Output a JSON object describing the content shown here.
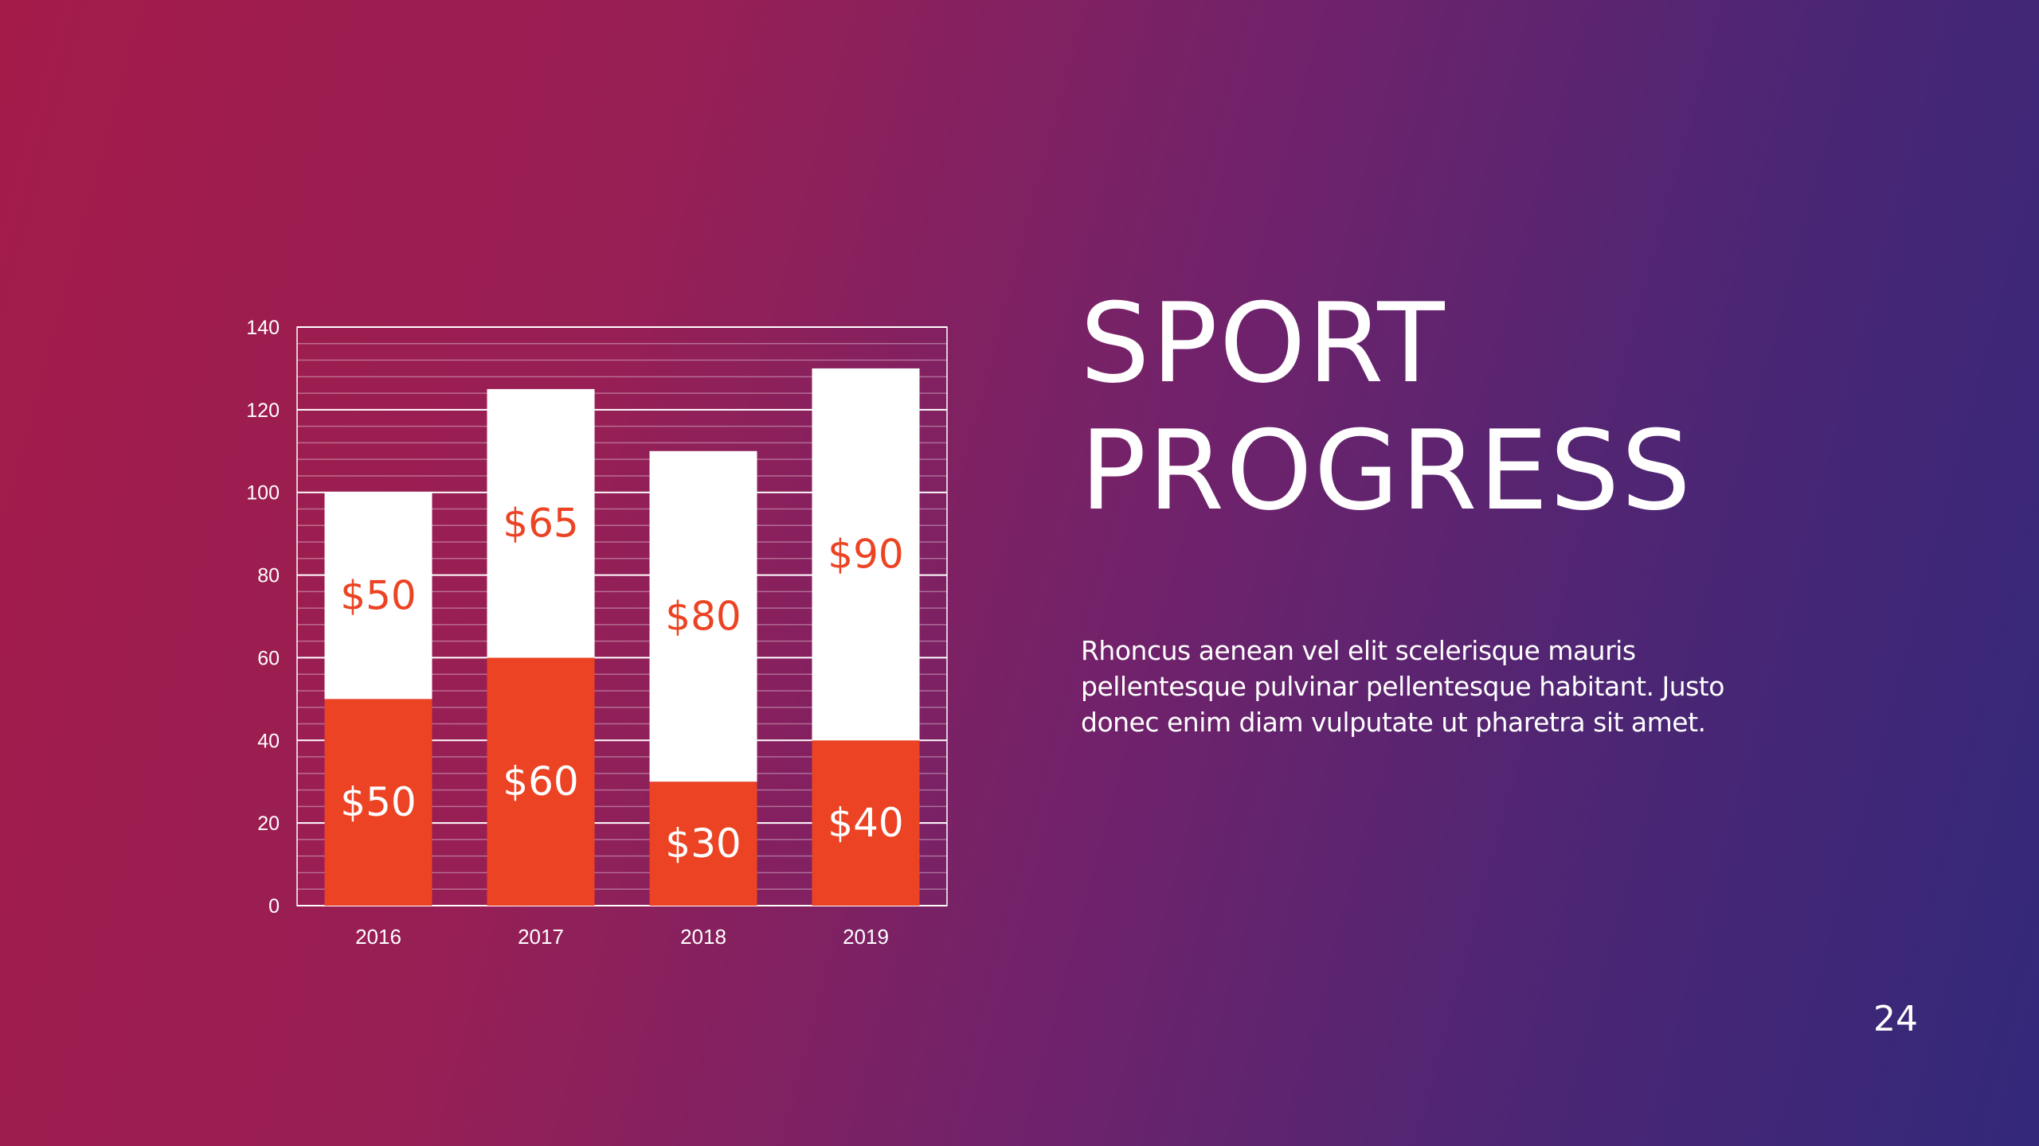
{
  "slide": {
    "title_line1": "SPORT",
    "title_line2": "PROGRESS",
    "body": "Rhoncus aenean vel elit scelerisque mauris pellentesque pulvinar pellentesque habitant. Justo donec enim diam vulputate ut pharetra sit amet.",
    "page_number": "24"
  },
  "colors": {
    "bottom_series": "#eb4323",
    "top_series": "#ffffff",
    "label_on_white": "#eb4323",
    "label_on_orange": "#ffffff"
  },
  "chart_data": {
    "type": "bar",
    "stacked": true,
    "categories": [
      "2016",
      "2017",
      "2018",
      "2019"
    ],
    "series": [
      {
        "name": "bottom",
        "values": [
          50,
          60,
          30,
          40
        ],
        "labels": [
          "$50",
          "$60",
          "$30",
          "$40"
        ]
      },
      {
        "name": "top",
        "values": [
          50,
          65,
          80,
          90
        ],
        "labels": [
          "$50",
          "$65",
          "$80",
          "$90"
        ]
      }
    ],
    "yticks": [
      "0",
      "20",
      "40",
      "60",
      "80",
      "100",
      "120",
      "140"
    ],
    "ylim": [
      0,
      140
    ],
    "minor_grid_step": 4,
    "grid": true,
    "title": "",
    "xlabel": "",
    "ylabel": ""
  }
}
